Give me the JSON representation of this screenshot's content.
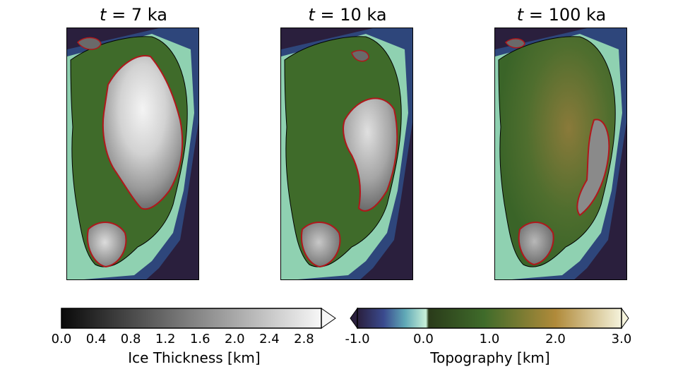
{
  "panels": [
    {
      "var": "t",
      "eq": " = ",
      "value": "7",
      "unit": "ka"
    },
    {
      "var": "t",
      "eq": " = ",
      "value": "10",
      "unit": "ka"
    },
    {
      "var": "t",
      "eq": " = ",
      "value": "100",
      "unit": "ka"
    }
  ],
  "colorbars": {
    "ice": {
      "label": "Ice Thickness [km]",
      "ticks": [
        "0.0",
        "0.4",
        "0.8",
        "1.2",
        "1.6",
        "2.0",
        "2.4",
        "2.8"
      ],
      "range": [
        0.0,
        3.0
      ],
      "extend": "max"
    },
    "topo": {
      "label": "Topography [km]",
      "ticks": [
        "-1.0",
        "0.0",
        "1.0",
        "2.0",
        "3.0"
      ],
      "range": [
        -1.0,
        3.0
      ],
      "extend": "both"
    }
  },
  "colors": {
    "ocean_deep": "#2a1f3d",
    "land_low": "#3f6b2a",
    "land_high": "#b08a3a",
    "ice_margin": "#b0171b",
    "coast": "#000000"
  }
}
